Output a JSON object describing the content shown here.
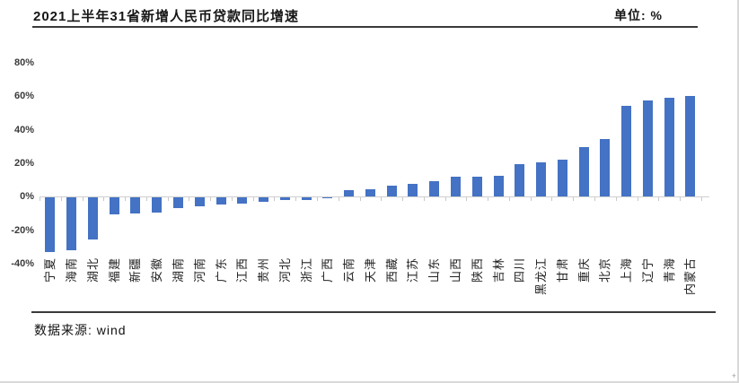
{
  "header": {
    "title": "2021上半年31省新增人民币贷款同比增速",
    "unit_label": "单位: %"
  },
  "footer": {
    "source": "数据来源: wind"
  },
  "decorations": {
    "corner_mark": "+"
  },
  "chart_data": {
    "type": "bar",
    "title": "2021上半年31省新增人民币贷款同比增速",
    "unit": "%",
    "xlabel": "",
    "ylabel": "",
    "ylim": [
      -40,
      80
    ],
    "yticks": [
      80,
      60,
      40,
      20,
      0,
      -20,
      -40
    ],
    "ytick_labels": [
      "80%",
      "60%",
      "40%",
      "20%",
      "0%",
      "-20%",
      "-40%"
    ],
    "grid": false,
    "legend": false,
    "bar_color": "#4472C4",
    "x_label_rotation": -90,
    "categories": [
      "宁夏",
      "海南",
      "湖北",
      "福建",
      "新疆",
      "安徽",
      "湖南",
      "河南",
      "广东",
      "江西",
      "贵州",
      "河北",
      "浙江",
      "广西",
      "云南",
      "天津",
      "西藏",
      "江苏",
      "山东",
      "山西",
      "陕西",
      "吉林",
      "四川",
      "黑龙江",
      "甘肃",
      "重庆",
      "北京",
      "上海",
      "辽宁",
      "青海",
      "内蒙古"
    ],
    "values": [
      -32.7,
      -31.3,
      -24.9,
      -10.2,
      -9.3,
      -9.0,
      -6.3,
      -5.2,
      -4.0,
      -3.4,
      -2.7,
      -1.5,
      -1.2,
      -0.3,
      3.7,
      4.4,
      6.4,
      7.7,
      9.1,
      12.0,
      12.2,
      12.5,
      19.6,
      20.5,
      22.3,
      29.5,
      34.4,
      54.5,
      57.3,
      59.0,
      60.2
    ]
  }
}
